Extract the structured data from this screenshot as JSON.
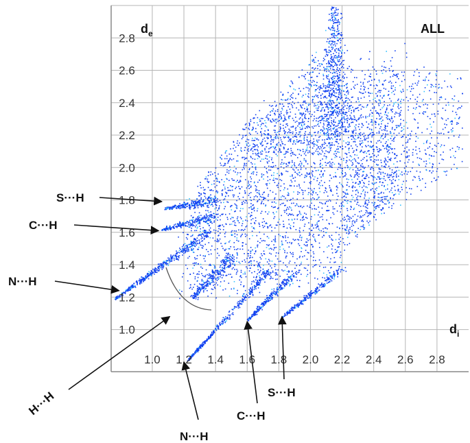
{
  "chart_data": {
    "type": "scatter",
    "title": "ALL",
    "xlabel": "d",
    "xlabel_sub": "i",
    "ylabel": "d",
    "ylabel_sub": "e",
    "xlim": [
      0.74,
      3.0
    ],
    "ylim": [
      0.74,
      3.0
    ],
    "x_ticks": [
      1.0,
      1.2,
      1.4,
      1.6,
      1.8,
      2.0,
      2.2,
      2.4,
      2.6,
      2.8
    ],
    "y_ticks": [
      1.0,
      1.2,
      1.4,
      1.6,
      1.8,
      2.0,
      2.2,
      2.4,
      2.6,
      2.8
    ],
    "x_tick_labels": [
      "1.0",
      "1.2",
      "1.4",
      "1.6",
      "1.8",
      "2.0",
      "2.2",
      "2.4",
      "2.6",
      "2.8"
    ],
    "y_tick_labels": [
      "1.0",
      "1.2",
      "1.4",
      "1.6",
      "1.8",
      "2.0",
      "2.2",
      "2.4",
      "2.6",
      "2.8"
    ],
    "grid": true,
    "point_color": "#1040f0",
    "dense_color": "#30c0ff",
    "annotations": [
      {
        "text": "S···H",
        "x": 1.06,
        "y": 1.79
      },
      {
        "text": "C···H",
        "x": 1.04,
        "y": 1.61
      },
      {
        "text": "N···H",
        "x": 0.79,
        "y": 1.24
      },
      {
        "text": "H···H",
        "x": 1.11,
        "y": 1.08
      },
      {
        "text": "N···H",
        "x": 1.2,
        "y": 0.8
      },
      {
        "text": "C···H",
        "x": 1.6,
        "y": 1.05
      },
      {
        "text": "S···H",
        "x": 1.82,
        "y": 1.08
      }
    ]
  }
}
